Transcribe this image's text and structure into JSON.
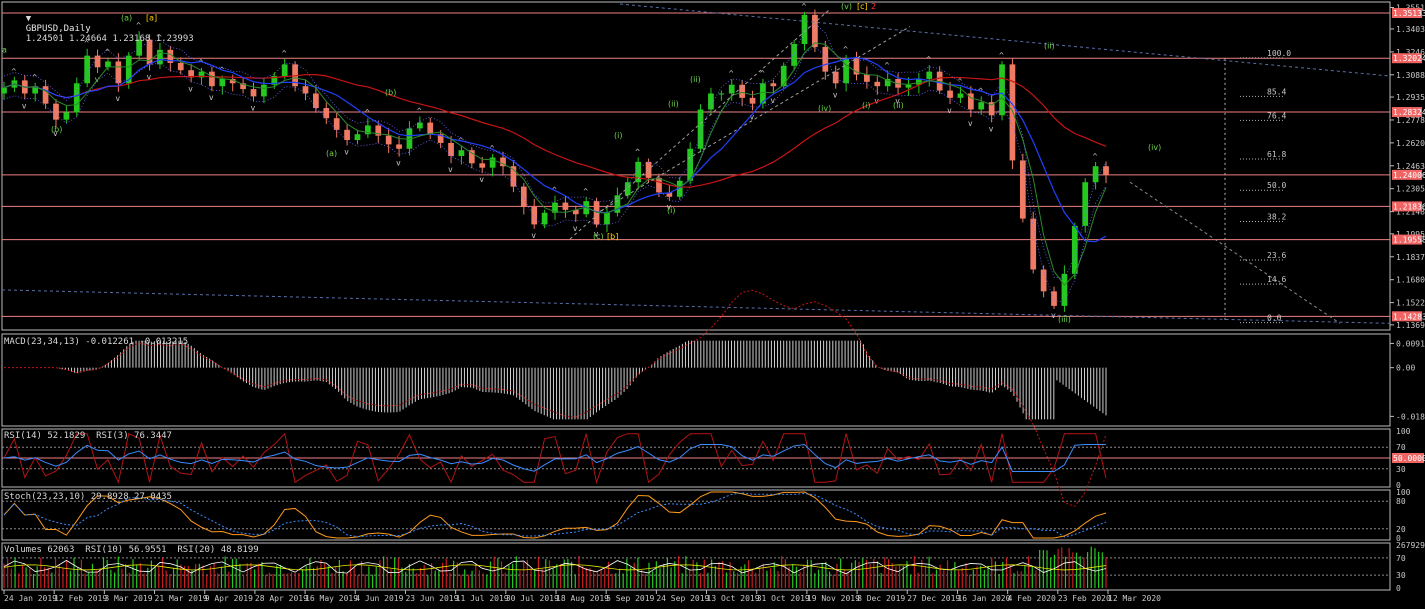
{
  "chart_data": {
    "type": "candlestick",
    "symbol": "GBPUSD,Daily",
    "ohlc_text": "1.24501 1.24664 1.23168 1.23993",
    "price_axis": {
      "ticks": [
        "1.35510",
        "1.34035",
        "1.32460",
        "1.30885",
        "1.29355",
        "1.27780",
        "1.26205",
        "1.24630",
        "1.23055",
        "1.21480",
        "1.19950",
        "1.18375",
        "1.16800",
        "1.15225",
        "1.13695"
      ],
      "tick_values": [
        1.3551,
        1.34035,
        1.3246,
        1.30885,
        1.29355,
        1.2778,
        1.26205,
        1.2463,
        1.23055,
        1.2148,
        1.1995,
        1.18375,
        1.168,
        1.15225,
        1.13695
      ],
      "range": [
        1.1348,
        1.3575
      ],
      "horizontal_levels": [
        {
          "label": "1.35133",
          "value": 1.35133
        },
        {
          "label": "1.32024",
          "value": 1.32024
        },
        {
          "label": "1.28324",
          "value": 1.28324
        },
        {
          "label": "1.24006",
          "value": 1.24006
        },
        {
          "label": "1.21836",
          "value": 1.21836
        },
        {
          "label": "1.19558",
          "value": 1.19558
        },
        {
          "label": "1.14283",
          "value": 1.14283
        }
      ]
    },
    "time_axis": [
      "24 Jan 2019",
      "12 Feb 2019",
      "3 Mar 2019",
      "21 Mar 2019",
      "9 Apr 2019",
      "28 Apr 2019",
      "16 May 2019",
      "4 Jun 2019",
      "23 Jun 2019",
      "11 Jul 2019",
      "30 Jul 2019",
      "18 Aug 2019",
      "5 Sep 2019",
      "24 Sep 2019",
      "13 Oct 2019",
      "31 Oct 2019",
      "19 Nov 2019",
      "8 Dec 2019",
      "27 Dec 2019",
      "16 Jan 2020",
      "4 Feb 2020",
      "23 Feb 2020",
      "12 Mar 2020"
    ],
    "price_path": [
      1.3,
      1.305,
      1.296,
      1.301,
      1.289,
      1.278,
      1.283,
      1.303,
      1.322,
      1.314,
      1.318,
      1.303,
      1.322,
      1.333,
      1.316,
      1.326,
      1.317,
      1.312,
      1.307,
      1.311,
      1.301,
      1.306,
      1.303,
      1.299,
      1.294,
      1.302,
      1.308,
      1.316,
      1.301,
      1.296,
      1.286,
      1.279,
      1.271,
      1.264,
      1.268,
      1.274,
      1.267,
      1.261,
      1.258,
      1.272,
      1.276,
      1.268,
      1.262,
      1.253,
      1.257,
      1.248,
      1.245,
      1.252,
      1.246,
      1.232,
      1.218,
      1.206,
      1.214,
      1.221,
      1.216,
      1.213,
      1.222,
      1.206,
      1.214,
      1.226,
      1.235,
      1.249,
      1.238,
      1.228,
      1.225,
      1.236,
      1.258,
      1.285,
      1.296,
      1.296,
      1.302,
      1.293,
      1.289,
      1.303,
      1.301,
      1.315,
      1.33,
      1.35,
      1.328,
      1.311,
      1.303,
      1.32,
      1.309,
      1.304,
      1.301,
      1.306,
      1.3,
      1.302,
      1.306,
      1.311,
      1.298,
      1.293,
      1.296,
      1.285,
      1.29,
      1.281,
      1.316,
      1.25,
      1.21,
      1.175,
      1.16,
      1.15,
      1.172,
      1.205,
      1.235,
      1.246,
      1.24
    ],
    "fibonacci": {
      "levels": [
        {
          "label": "100.0",
          "value": 1.3205
        },
        {
          "label": "85.4",
          "value": 1.294
        },
        {
          "label": "76.4",
          "value": 1.2775
        },
        {
          "label": "61.8",
          "value": 1.251
        },
        {
          "label": "50.0",
          "value": 1.2295
        },
        {
          "label": "38.2",
          "value": 1.208
        },
        {
          "label": "23.6",
          "value": 1.1815
        },
        {
          "label": "14.6",
          "value": 1.165
        },
        {
          "label": "0.0",
          "value": 1.1385
        }
      ]
    },
    "wave_labels": [
      {
        "text": "a",
        "price": 1.324,
        "color": "#6bd34a"
      },
      {
        "text": "(b)",
        "price": 1.2695,
        "color": "#6bd34a"
      },
      {
        "text": "(a)",
        "price": 1.346,
        "color": "#6bd34a"
      },
      {
        "text": "[a]",
        "price": 1.346,
        "color": "#ffd200"
      },
      {
        "text": "(b)",
        "price": 1.295,
        "color": "#6bd34a"
      },
      {
        "text": "(a)",
        "price": 1.253,
        "color": "#6bd34a"
      },
      {
        "text": "(c)",
        "price": 1.196,
        "color": "#6bd34a"
      },
      {
        "text": "[b]",
        "price": 1.196,
        "color": "#ffd200"
      },
      {
        "text": "(i)",
        "price": 1.2655,
        "color": "#6bd34a"
      },
      {
        "text": "(i)",
        "price": 1.214,
        "color": "#6bd34a"
      },
      {
        "text": "(ii)",
        "price": 1.304,
        "color": "#6bd34a"
      },
      {
        "text": "(ii)",
        "price": 1.287,
        "color": "#6bd34a"
      },
      {
        "text": "(iv)",
        "price": 1.284,
        "color": "#6bd34a"
      },
      {
        "text": "(v)",
        "price": 1.354,
        "color": "#6bd34a"
      },
      {
        "text": "[c]",
        "price": 1.354,
        "color": "#ffd200"
      },
      {
        "text": "2",
        "price": 1.354,
        "color": "#ff3030"
      },
      {
        "text": "(i)",
        "price": 1.286,
        "color": "#6bd34a"
      },
      {
        "text": "(ii)",
        "price": 1.286,
        "color": "#6bd34a"
      },
      {
        "text": "(ii)",
        "price": 1.327,
        "color": "#6bd34a"
      },
      {
        "text": "(iii)",
        "price": 1.139,
        "color": "#6bd34a"
      },
      {
        "text": "(iv)",
        "price": 1.257,
        "color": "#6bd34a"
      }
    ]
  },
  "indicators": {
    "macd": {
      "title": "MACD(23,34,13) -0.012261 -0.013215",
      "ticks": [
        "0.009148",
        "0.00",
        "-0.018379"
      ],
      "tick_values": [
        0.009148,
        0.0,
        -0.018379
      ],
      "range": [
        -0.0205,
        0.0112
      ]
    },
    "rsi": {
      "title": "RSI(14) 52.1829  RSI(3) 76.3447",
      "ticks": [
        "100",
        "70",
        "50.0000",
        "30",
        "0"
      ],
      "tick_values": [
        100,
        70,
        50,
        30,
        0
      ],
      "highlight": "50.0000"
    },
    "stoch": {
      "title": "Stoch(23,23,10) 29.8928 27.0435",
      "ticks": [
        "100",
        "80",
        "20",
        "0"
      ],
      "tick_values": [
        100,
        80,
        20,
        0
      ]
    },
    "volumes": {
      "title": "Volumes 62063  RSI(10) 56.9551  RSI(20) 48.8199",
      "ticks": [
        "267929",
        "70",
        "30",
        "0"
      ],
      "tick_values": [
        267929,
        70,
        30,
        0
      ]
    }
  },
  "colors": {
    "background": "#000000",
    "bull_candle": "#25c81e",
    "bear_candle": "#f07b64",
    "grid_level": "#f08080",
    "ma_red": "#c81414",
    "ma_blue": "#2040ff",
    "macd_hist": "#d0d0d0",
    "rsi_red": "#b41414",
    "rsi_blue": "#3a8cff",
    "stoch_orange": "#ff9a1a",
    "axis_tag_bg": "#f06464",
    "fib": "#b4b4b4",
    "wave_green": "#6bd34a",
    "wave_yellow": "#ffd200"
  }
}
